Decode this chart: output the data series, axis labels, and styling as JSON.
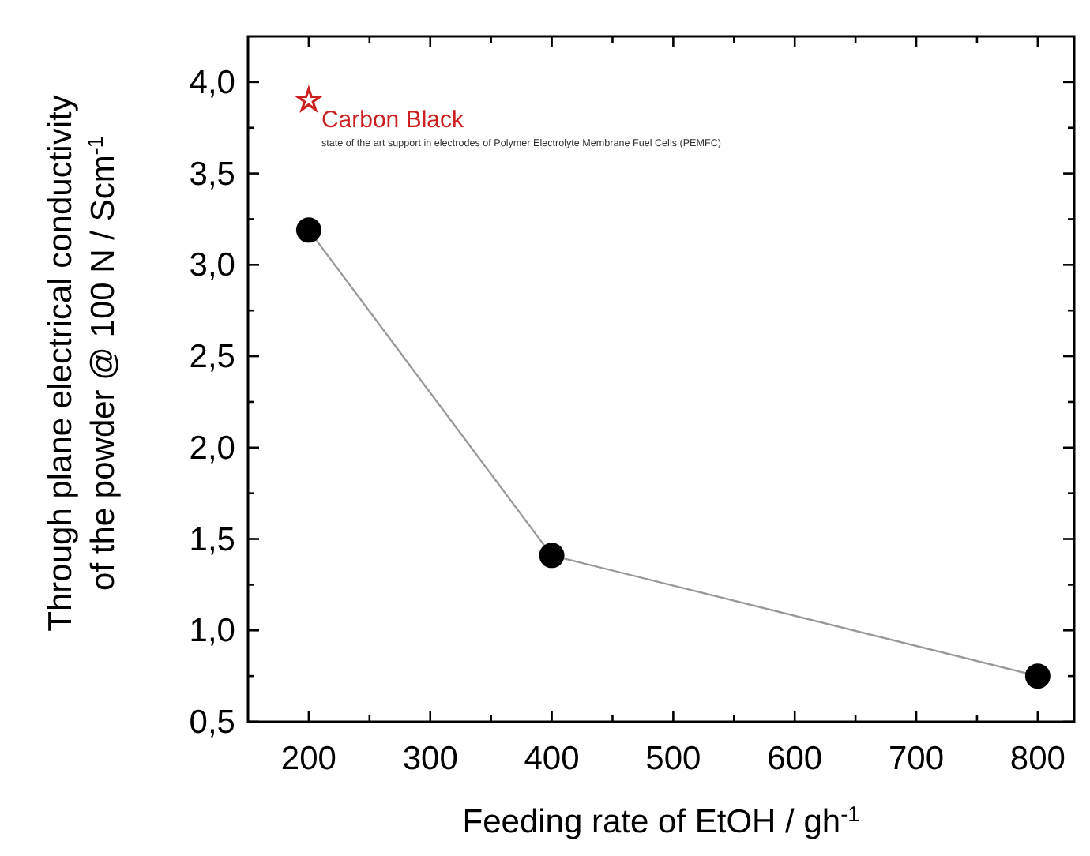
{
  "chart_data": {
    "type": "line",
    "xlabel": "Feeding rate of EtOH / gh$^{-1}$",
    "ylabel": "Through plane electrical conductivity\nof the powder @ 100 N / Scm$^{-1}$",
    "xlim": [
      150,
      830
    ],
    "ylim": [
      0.5,
      4.25
    ],
    "xticks": [
      200,
      {
        "value": 250,
        "label": null
      },
      300,
      {
        "value": 350,
        "label": null
      },
      400,
      {
        "value": 450,
        "label": null
      },
      500,
      {
        "value": 550,
        "label": null
      },
      600,
      {
        "value": 650,
        "label": null
      },
      700,
      {
        "value": 750,
        "label": null
      },
      800
    ],
    "yticks": [
      {
        "value": 0.5,
        "label": "0,5"
      },
      {
        "value": 0.75,
        "label": null
      },
      {
        "value": 1,
        "label": "1,0"
      },
      {
        "value": 1.25,
        "label": null
      },
      {
        "value": 1.5,
        "label": "1,5"
      },
      {
        "value": 1.75,
        "label": null
      },
      {
        "value": 2,
        "label": "2,0"
      },
      {
        "value": 2.25,
        "label": null
      },
      {
        "value": 2.5,
        "label": "2,5"
      },
      {
        "value": 2.75,
        "label": null
      },
      {
        "value": 3,
        "label": "3,0"
      },
      {
        "value": 3.25,
        "label": null
      },
      {
        "value": 3.5,
        "label": "3,5"
      },
      {
        "value": 3.75,
        "label": null
      },
      {
        "value": 4,
        "label": "4,0"
      }
    ],
    "grid": false,
    "marker": "circle",
    "line_style": "solid",
    "series": [
      {
        "color": "#000000",
        "x": [
          200,
          400,
          800
        ],
        "values": [
          3.19,
          1.41,
          0.75
        ]
      },
      {
        "name": "Carbon Black",
        "type": "scatter",
        "marker": "star",
        "color": "#cc1f1f",
        "x": [
          200
        ],
        "values": [
          3.9
        ]
      }
    ],
    "annotations": [
      "state of the art support in electrodes of Polymer Electrolyte Membrane Fuel Cells (PEMFC)"
    ]
  }
}
